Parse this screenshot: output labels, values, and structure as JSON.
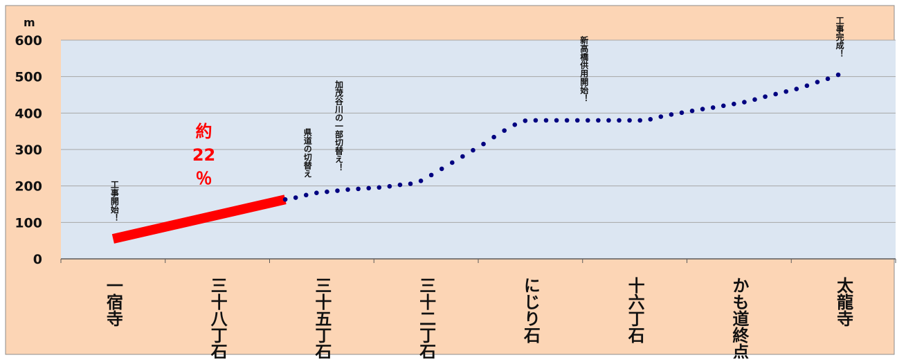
{
  "chart_data": {
    "type": "line",
    "unit": "m",
    "ylim": [
      0,
      600
    ],
    "yticks": [
      0,
      100,
      200,
      300,
      400,
      500,
      600
    ],
    "grid": true,
    "categories": [
      "一宿寺",
      "三十八丁石",
      "三十五丁石",
      "三十二丁石",
      "にじり石",
      "十六丁石",
      "かも道終点",
      "太龍寺"
    ],
    "completed_series": {
      "x": [
        0,
        1.65
      ],
      "values": [
        55,
        163
      ],
      "color": "#ff0000"
    },
    "planned_series": {
      "x": [
        1.65,
        1.75,
        1.85,
        1.95,
        2.05,
        2.15,
        2.25,
        2.35,
        2.45,
        2.55,
        2.65,
        2.75,
        2.85,
        2.95,
        3.05,
        3.15,
        3.25,
        3.35,
        3.45,
        3.55,
        3.65,
        3.75,
        3.85,
        3.95,
        4.05,
        4.15,
        4.25,
        4.35,
        4.45,
        4.55,
        4.65,
        4.75,
        4.85,
        4.95,
        5.05,
        5.15,
        5.25,
        5.35,
        5.45,
        5.55,
        5.65,
        5.75,
        5.85,
        5.95,
        6.05,
        6.15,
        6.25,
        6.35,
        6.45,
        6.55,
        6.65,
        6.75,
        6.85,
        6.95
      ],
      "values": [
        163,
        168,
        175,
        181,
        184,
        187,
        190,
        192,
        194,
        196,
        199,
        203,
        206,
        214,
        230,
        247,
        264,
        281,
        298,
        315,
        334,
        352,
        368,
        379,
        380,
        380,
        380,
        380,
        380,
        380,
        380,
        380,
        380,
        380,
        380,
        383,
        390,
        396,
        401,
        406,
        411,
        415,
        420,
        425,
        430,
        437,
        445,
        452,
        459,
        466,
        475,
        485,
        494,
        505
      ],
      "color": "#000080"
    },
    "annotations": [
      {
        "text": "工事開始！",
        "x": 0
      },
      {
        "text": "県道の切替え",
        "x": 1.85
      },
      {
        "text": "加茂谷川の一部切替え！",
        "x": 2.15
      },
      {
        "text": "新高橋供用開始！",
        "x": 4.5
      },
      {
        "text": "工事完成！",
        "x": 6.95
      }
    ],
    "highlight_label": [
      "約",
      "22",
      "％"
    ],
    "colors": {
      "outer_background": "#fcd5b5",
      "plot_background": "#dce6f2",
      "gridline": "#a6a6a6"
    }
  }
}
